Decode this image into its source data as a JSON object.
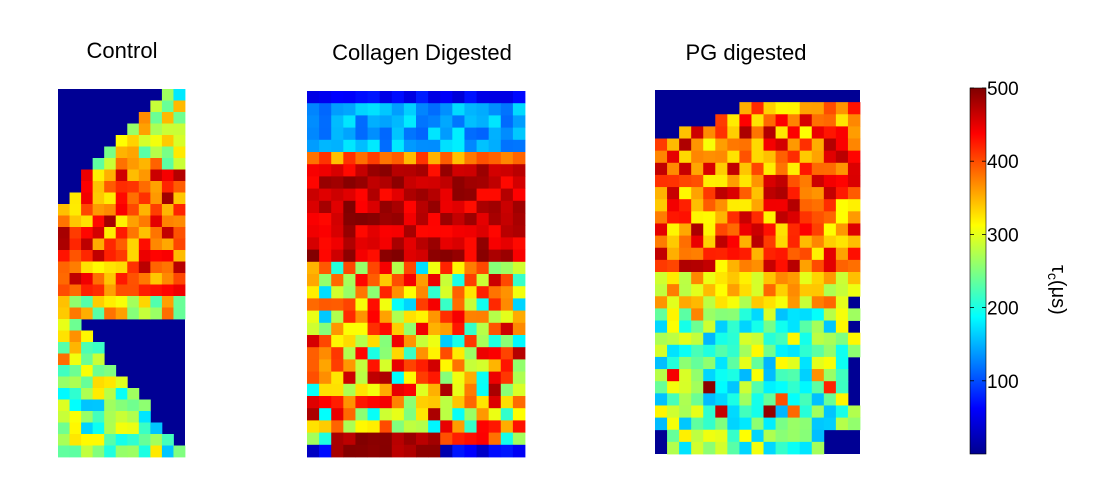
{
  "chart_data": {
    "type": "heatmap",
    "colormap": "jet",
    "panels": [
      {
        "title": "Control",
        "rows": 32,
        "cols": 11,
        "shape": "trapezoid-right-notch",
        "mean_tau_c_us": 360
      },
      {
        "title": "Collagen Digested",
        "rows": 30,
        "cols": 18,
        "shape": "rectangle",
        "top_band": "low (~100-180)",
        "middle_band": "high (~400-500)",
        "bottom_band": "mixed (~250-450)"
      },
      {
        "title": "PG digested",
        "rows": 30,
        "cols": 17,
        "shape": "rectangle-cut-top-left",
        "upper_band": "high (~380-460)",
        "lower_band": "mid (~180-300)"
      }
    ],
    "colorbar": {
      "label_main": "τ",
      "label_sub": "c",
      "label_unit": "(μs)",
      "min": 0,
      "max": 500,
      "ticks": [
        "100",
        "200",
        "300",
        "400",
        "500"
      ],
      "tick_values": [
        100,
        200,
        300,
        400,
        500
      ]
    }
  }
}
